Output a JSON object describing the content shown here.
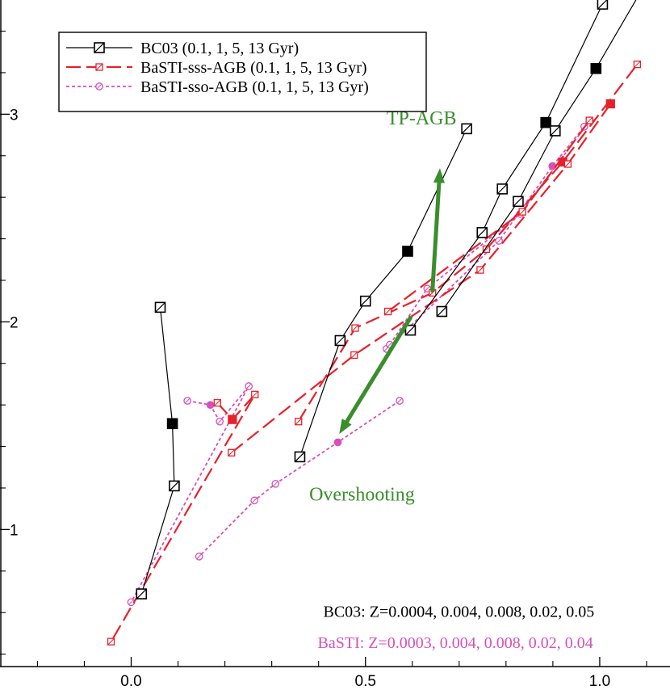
{
  "chart_data": {
    "type": "scatter",
    "title": "",
    "xlabel": "",
    "ylabel": "",
    "xlim": [
      -0.28,
      1.15
    ],
    "ylim": [
      0.34,
      3.55
    ],
    "xticks": [
      0.0,
      0.5,
      1.0
    ],
    "xtick_labels": [
      "0.0",
      "0.5",
      "1.0"
    ],
    "x_minor_ticks": [
      -0.2,
      -0.1,
      0.1,
      0.2,
      0.3,
      0.4,
      0.6,
      0.7,
      0.8,
      0.9,
      1.1
    ],
    "yticks": [
      1,
      2,
      3
    ],
    "ytick_labels": [
      "1",
      "2",
      "3"
    ],
    "y_minor_ticks": [
      0.4,
      0.6,
      0.8,
      1.2,
      1.4,
      1.6,
      1.8,
      2.2,
      2.4,
      2.6,
      2.8,
      3.2,
      3.4
    ],
    "grid": false,
    "legend_position": "top-left",
    "series": [
      {
        "name": "BC03 (0.1, 1, 5, 13 Gyr)",
        "color": "#000000",
        "style": "solid",
        "marker": "square-hollow",
        "tracks": [
          {
            "x": [
              0.062,
              0.088,
              0.092,
              0.022
            ],
            "y": [
              2.07,
              1.51,
              1.21,
              0.69
            ],
            "filled": [
              false,
              true,
              false,
              false
            ]
          },
          {
            "x": [
              0.36,
              0.446,
              0.5,
              0.59,
              0.716
            ],
            "y": [
              1.35,
              1.91,
              2.1,
              2.34,
              2.93
            ],
            "filled": [
              false,
              false,
              false,
              true,
              false
            ]
          },
          {
            "x": [
              0.596,
              0.749,
              0.792,
              0.885,
              1.006
            ],
            "y": [
              1.96,
              2.43,
              2.64,
              2.96,
              3.53
            ],
            "filled": [
              false,
              false,
              false,
              true,
              false
            ]
          },
          {
            "x": [
              0.663,
              0.826,
              0.905,
              0.992,
              1.116
            ],
            "y": [
              2.05,
              2.58,
              2.92,
              3.22,
              3.7
            ],
            "filled": [
              false,
              false,
              false,
              true,
              false
            ]
          }
        ]
      },
      {
        "name": "BaSTI-sss-AGB (0.1, 1, 5, 13 Gyr)",
        "color": "#e8202a",
        "style": "dashed",
        "marker": "square-small",
        "tracks": [
          {
            "x": [
              0.184,
              0.216,
              0.264,
              -0.043
            ],
            "y": [
              1.61,
              1.53,
              1.65,
              0.46
            ],
            "filled": [
              false,
              true,
              false,
              false
            ]
          },
          {
            "x": [
              0.357,
              0.478,
              0.643,
              0.758,
              0.921,
              1.08
            ],
            "y": [
              1.52,
              1.97,
              2.14,
              2.35,
              2.77,
              3.24
            ],
            "filled": [
              false,
              false,
              false,
              false,
              true,
              false
            ]
          },
          {
            "x": [
              0.214,
              0.476,
              0.745,
              0.932,
              1.023
            ],
            "y": [
              1.37,
              1.84,
              2.25,
              2.76,
              3.05
            ],
            "filled": [
              false,
              false,
              false,
              false,
              true
            ]
          },
          {
            "x": [
              0.548,
              0.835,
              0.978
            ],
            "y": [
              2.05,
              2.53,
              2.97
            ],
            "filled": [
              false,
              false,
              false
            ]
          }
        ]
      },
      {
        "name": "BaSTI-sso-AGB (0.1, 1, 5, 13 Gyr)",
        "color": "#d84fb8",
        "style": "dotted",
        "marker": "circle-small",
        "tracks": [
          {
            "x": [
              0.12,
              0.169,
              0.189,
              0.251,
              0.0
            ],
            "y": [
              1.62,
              1.6,
              1.52,
              1.69,
              0.65
            ],
            "filled": [
              false,
              true,
              false,
              false,
              false
            ]
          },
          {
            "x": [
              0.573,
              0.441,
              0.308,
              0.263,
              0.145
            ],
            "y": [
              1.62,
              1.42,
              1.22,
              1.14,
              0.87
            ],
            "filled": [
              false,
              true,
              false,
              false,
              false
            ]
          },
          {
            "x": [
              0.545,
              0.785,
              0.899,
              0.967
            ],
            "y": [
              1.87,
              2.39,
              2.75,
              2.94
            ],
            "filled": [
              false,
              false,
              true,
              false
            ]
          },
          {
            "x": [
              0.552,
              0.632,
              0.83,
              0.979
            ],
            "y": [
              1.89,
              2.16,
              2.52,
              2.97
            ],
            "filled": [
              false,
              false,
              false,
              false
            ]
          }
        ]
      }
    ],
    "annotations": [
      {
        "text": "TP-AGB",
        "color": "#3a8e2c",
        "x": 0.545,
        "y": 2.95
      },
      {
        "text": "Overshooting",
        "color": "#3a8e2c",
        "x": 0.38,
        "y": 1.14
      },
      {
        "text": "BC03: Z=0.0004, 0.004, 0.008, 0.02, 0.05",
        "color": "#000000",
        "x": 0.41,
        "y": 0.58
      },
      {
        "text": "BaSTI: Z=0.0003, 0.004, 0.008, 0.02, 0.04",
        "color": "#d84fb8",
        "x": 0.398,
        "y": 0.43
      }
    ],
    "arrows": [
      {
        "color": "#3a8e2c",
        "from": [
          0.643,
          2.15
        ],
        "to": [
          0.659,
          2.74
        ]
      },
      {
        "color": "#3a8e2c",
        "from": [
          0.596,
          2.02
        ],
        "to": [
          0.444,
          1.46
        ]
      }
    ]
  }
}
